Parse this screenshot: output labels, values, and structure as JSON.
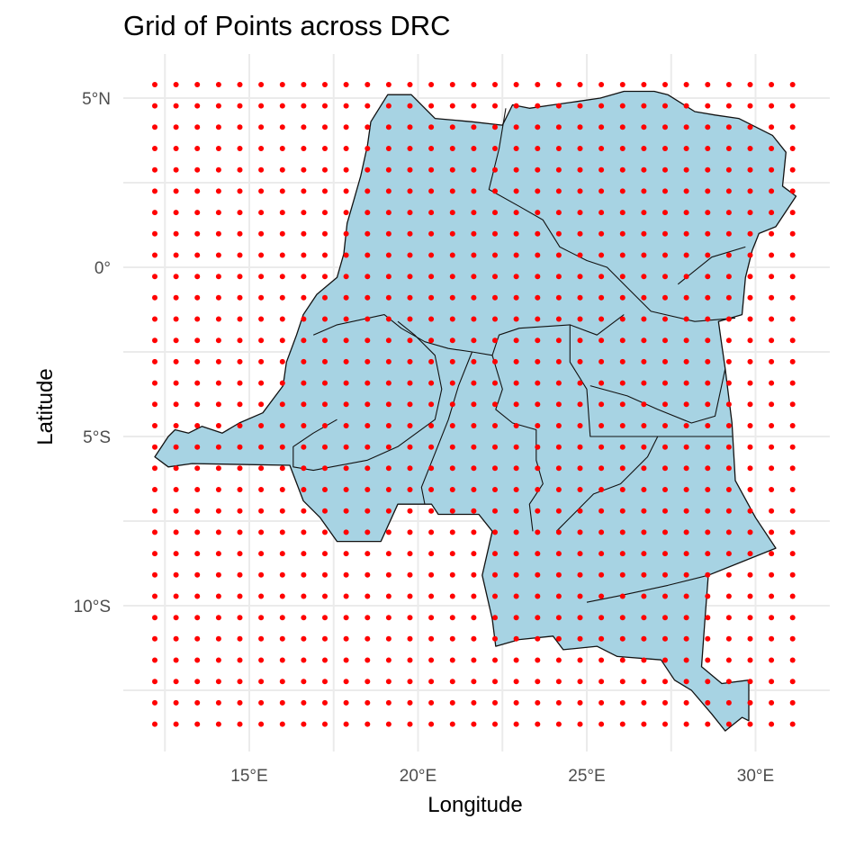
{
  "chart_data": {
    "type": "scatter",
    "title": "Grid of Points across DRC",
    "xlabel": "Longitude",
    "ylabel": "Latitude",
    "x_ticks": [
      {
        "value": 15,
        "label": "15°E"
      },
      {
        "value": 20,
        "label": "20°E"
      },
      {
        "value": 25,
        "label": "25°E"
      },
      {
        "value": 30,
        "label": "30°E"
      }
    ],
    "y_ticks": [
      {
        "value": 5,
        "label": "5°N"
      },
      {
        "value": 0,
        "label": "0°"
      },
      {
        "value": -5,
        "label": "5°S"
      },
      {
        "value": -10,
        "label": "10°S"
      }
    ],
    "xlim": [
      11.8,
      31.9
    ],
    "ylim": [
      -14.1,
      6.4
    ],
    "grid": true,
    "points": {
      "lon_start": 12.2,
      "lon_step": 0.63,
      "lon_count": 31,
      "lat_start": 5.4,
      "lat_step": -0.63,
      "lat_count": 31,
      "color": "#ff0000"
    },
    "country_fill": "#a7d3e3",
    "border_color": "#111111",
    "country_outline": [
      [
        12.2,
        -5.6
      ],
      [
        12.6,
        -5.9
      ],
      [
        13.3,
        -5.8
      ],
      [
        16.2,
        -5.85
      ],
      [
        16.6,
        -6.9
      ],
      [
        17.1,
        -7.4
      ],
      [
        17.6,
        -8.1
      ],
      [
        18.9,
        -8.1
      ],
      [
        19.4,
        -7.0
      ],
      [
        20.4,
        -7.0
      ],
      [
        20.6,
        -7.3
      ],
      [
        21.8,
        -7.3
      ],
      [
        22.2,
        -7.8
      ],
      [
        21.9,
        -9.1
      ],
      [
        22.2,
        -10.4
      ],
      [
        22.3,
        -11.2
      ],
      [
        23.0,
        -11.0
      ],
      [
        24.0,
        -10.9
      ],
      [
        24.3,
        -11.3
      ],
      [
        25.3,
        -11.2
      ],
      [
        25.9,
        -11.5
      ],
      [
        27.2,
        -11.6
      ],
      [
        27.6,
        -12.2
      ],
      [
        28.1,
        -12.5
      ],
      [
        28.7,
        -13.2
      ],
      [
        29.1,
        -13.7
      ],
      [
        29.6,
        -13.3
      ],
      [
        29.8,
        -13.4
      ],
      [
        29.8,
        -12.2
      ],
      [
        29.0,
        -12.3
      ],
      [
        28.4,
        -11.8
      ],
      [
        28.5,
        -10.4
      ],
      [
        28.6,
        -9.1
      ],
      [
        30.6,
        -8.3
      ],
      [
        30.0,
        -7.4
      ],
      [
        29.4,
        -6.3
      ],
      [
        29.3,
        -4.6
      ],
      [
        29.1,
        -3.0
      ],
      [
        29.0,
        -2.3
      ],
      [
        28.9,
        -1.6
      ],
      [
        29.6,
        -1.4
      ],
      [
        29.7,
        -0.3
      ],
      [
        29.9,
        0.5
      ],
      [
        30.1,
        1.0
      ],
      [
        30.6,
        1.2
      ],
      [
        31.2,
        2.1
      ],
      [
        30.8,
        2.4
      ],
      [
        30.9,
        3.4
      ],
      [
        30.5,
        3.9
      ],
      [
        29.5,
        4.4
      ],
      [
        28.8,
        4.5
      ],
      [
        28.2,
        4.6
      ],
      [
        27.4,
        5.1
      ],
      [
        27.0,
        5.2
      ],
      [
        26.1,
        5.2
      ],
      [
        25.4,
        5.0
      ],
      [
        24.7,
        4.9
      ],
      [
        24.0,
        4.8
      ],
      [
        23.3,
        4.7
      ],
      [
        22.8,
        4.8
      ],
      [
        22.5,
        4.2
      ],
      [
        21.6,
        4.3
      ],
      [
        20.5,
        4.4
      ],
      [
        19.8,
        5.1
      ],
      [
        19.1,
        5.1
      ],
      [
        18.6,
        4.3
      ],
      [
        18.5,
        3.6
      ],
      [
        18.3,
        2.7
      ],
      [
        18.1,
        2.0
      ],
      [
        17.9,
        1.3
      ],
      [
        17.8,
        0.4
      ],
      [
        17.6,
        -0.3
      ],
      [
        17.0,
        -0.8
      ],
      [
        16.6,
        -1.4
      ],
      [
        16.4,
        -2.0
      ],
      [
        16.1,
        -2.8
      ],
      [
        16.0,
        -3.5
      ],
      [
        15.4,
        -4.3
      ],
      [
        14.7,
        -4.6
      ],
      [
        14.2,
        -4.9
      ],
      [
        13.6,
        -4.7
      ],
      [
        13.2,
        -4.9
      ],
      [
        12.8,
        -4.8
      ],
      [
        12.6,
        -5.0
      ],
      [
        12.2,
        -5.6
      ]
    ],
    "province_lines": [
      [
        [
          22.6,
          4.7
        ],
        [
          22.4,
          3.5
        ],
        [
          22.1,
          2.3
        ],
        [
          23.0,
          1.8
        ],
        [
          23.7,
          1.4
        ],
        [
          24.2,
          0.6
        ],
        [
          25.0,
          0.2
        ],
        [
          25.6,
          0.0
        ],
        [
          26.2,
          -0.6
        ],
        [
          26.9,
          -1.3
        ],
        [
          28.2,
          -1.6
        ],
        [
          29.4,
          -1.5
        ]
      ],
      [
        [
          16.9,
          -2.0
        ],
        [
          17.6,
          -1.7
        ],
        [
          19.0,
          -1.4
        ],
        [
          19.5,
          -1.8
        ],
        [
          20.2,
          -2.2
        ],
        [
          20.9,
          -2.4
        ],
        [
          21.6,
          -2.5
        ],
        [
          22.2,
          -2.6
        ],
        [
          22.4,
          -2.0
        ],
        [
          23.0,
          -1.8
        ],
        [
          24.5,
          -1.7
        ],
        [
          25.3,
          -2.0
        ],
        [
          26.1,
          -1.4
        ]
      ],
      [
        [
          19.4,
          -1.6
        ],
        [
          19.9,
          -2.0
        ],
        [
          20.5,
          -2.6
        ],
        [
          20.7,
          -3.6
        ],
        [
          20.5,
          -4.5
        ],
        [
          19.4,
          -5.3
        ],
        [
          18.5,
          -5.7
        ],
        [
          16.9,
          -6.0
        ],
        [
          16.3,
          -5.9
        ],
        [
          16.3,
          -5.3
        ],
        [
          16.9,
          -4.9
        ],
        [
          17.6,
          -4.5
        ]
      ],
      [
        [
          21.6,
          -2.5
        ],
        [
          21.2,
          -3.5
        ],
        [
          20.9,
          -4.5
        ],
        [
          20.5,
          -5.5
        ],
        [
          20.1,
          -6.5
        ],
        [
          20.2,
          -7.0
        ]
      ],
      [
        [
          22.2,
          -2.6
        ],
        [
          22.5,
          -3.6
        ],
        [
          22.3,
          -4.2
        ],
        [
          22.8,
          -4.6
        ],
        [
          23.5,
          -4.8
        ],
        [
          23.5,
          -5.7
        ],
        [
          23.7,
          -6.4
        ],
        [
          23.3,
          -7.0
        ],
        [
          23.4,
          -7.8
        ]
      ],
      [
        [
          24.5,
          -1.7
        ],
        [
          24.5,
          -2.8
        ],
        [
          25.0,
          -3.6
        ],
        [
          25.1,
          -5.0
        ],
        [
          27.1,
          -5.0
        ],
        [
          29.3,
          -5.0
        ]
      ],
      [
        [
          25.1,
          -3.5
        ],
        [
          26.2,
          -3.8
        ],
        [
          27.1,
          -4.2
        ],
        [
          28.1,
          -4.6
        ],
        [
          28.8,
          -4.4
        ],
        [
          29.1,
          -3.0
        ]
      ],
      [
        [
          27.1,
          -5.0
        ],
        [
          26.8,
          -5.6
        ],
        [
          26.0,
          -6.4
        ],
        [
          25.2,
          -6.7
        ],
        [
          24.6,
          -7.3
        ],
        [
          24.1,
          -7.8
        ]
      ],
      [
        [
          28.6,
          -9.1
        ],
        [
          27.4,
          -9.4
        ],
        [
          26.0,
          -9.7
        ],
        [
          25.0,
          -9.9
        ]
      ],
      [
        [
          27.7,
          -0.5
        ],
        [
          28.7,
          0.3
        ],
        [
          29.7,
          0.6
        ]
      ]
    ]
  }
}
